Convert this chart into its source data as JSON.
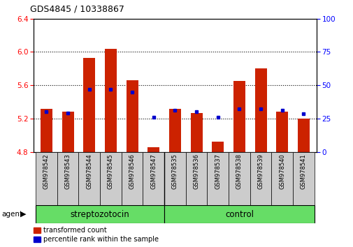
{
  "title": "GDS4845 / 10338867",
  "samples": [
    "GSM978542",
    "GSM978543",
    "GSM978544",
    "GSM978545",
    "GSM978546",
    "GSM978547",
    "GSM978535",
    "GSM978536",
    "GSM978537",
    "GSM978538",
    "GSM978539",
    "GSM978540",
    "GSM978541"
  ],
  "red_values": [
    5.32,
    5.28,
    5.93,
    6.04,
    5.66,
    4.86,
    5.32,
    5.27,
    4.92,
    5.65,
    5.8,
    5.28,
    5.2
  ],
  "blue_values": [
    5.28,
    5.27,
    5.55,
    5.55,
    5.52,
    5.22,
    5.3,
    5.28,
    5.22,
    5.32,
    5.32,
    5.3,
    5.26
  ],
  "ymin": 4.8,
  "ymax": 6.4,
  "y2min": 0,
  "y2max": 100,
  "yticks": [
    4.8,
    5.2,
    5.6,
    6.0,
    6.4
  ],
  "y2ticks": [
    0,
    25,
    50,
    75,
    100
  ],
  "gridlines": [
    5.2,
    5.6,
    6.0
  ],
  "bar_color": "#cc2200",
  "dot_color": "#0000cc",
  "n_strep": 6,
  "n_ctrl": 7,
  "streptozotocin_label": "streptozotocin",
  "control_label": "control",
  "agent_label": "agent",
  "legend1": "transformed count",
  "legend2": "percentile rank within the sample",
  "group_bg_color": "#66dd66",
  "xlabel_bg_color": "#cccccc",
  "bar_width": 0.55,
  "baseline": 4.8
}
